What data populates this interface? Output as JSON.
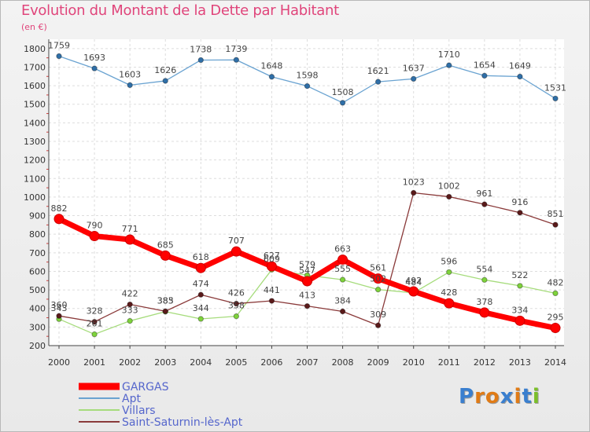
{
  "title": "Evolution du Montant de la Dette par Habitant",
  "subtitle": "(en €)",
  "logo": "Proxiti",
  "chart_data": {
    "type": "line",
    "x": [
      2000,
      2001,
      2002,
      2003,
      2004,
      2005,
      2006,
      2007,
      2008,
      2009,
      2010,
      2011,
      2012,
      2013,
      2014
    ],
    "y_ticks": [
      200,
      300,
      400,
      500,
      600,
      700,
      800,
      900,
      1000,
      1100,
      1200,
      1300,
      1400,
      1500,
      1600,
      1700,
      1800
    ],
    "ylim": [
      200,
      1850
    ],
    "grid": true,
    "legend_position": "bottom-left",
    "series": [
      {
        "name": "Apt",
        "color": "#6aa3d1",
        "point_color": "#2f6fa8",
        "values": [
          1759,
          1693,
          1603,
          1626,
          1738,
          1739,
          1648,
          1598,
          1508,
          1621,
          1637,
          1710,
          1654,
          1649,
          1531
        ]
      },
      {
        "name": "Villars",
        "color": "#a6dc7c",
        "point_color": "#7ed33b",
        "values": [
          343,
          261,
          333,
          383,
          344,
          358,
          609,
          579,
          555,
          502,
          484,
          596,
          554,
          522,
          482
        ]
      },
      {
        "name": "Saint-Saturnin-lès-Apt",
        "color": "#8a3a3a",
        "point_color": "#5a1a1a",
        "values": [
          360,
          328,
          422,
          385,
          474,
          426,
          441,
          413,
          384,
          309,
          1023,
          1002,
          961,
          916,
          851
        ]
      },
      {
        "name": "GARGAS",
        "color": "#ff0000",
        "point_color": "#ff0000",
        "values": [
          882,
          790,
          771,
          685,
          618,
          707,
          627,
          547,
          663,
          561,
          492,
          428,
          378,
          334,
          295
        ]
      }
    ],
    "legend_order": [
      "GARGAS",
      "Apt",
      "Villars",
      "Saint-Saturnin-lès-Apt"
    ]
  }
}
